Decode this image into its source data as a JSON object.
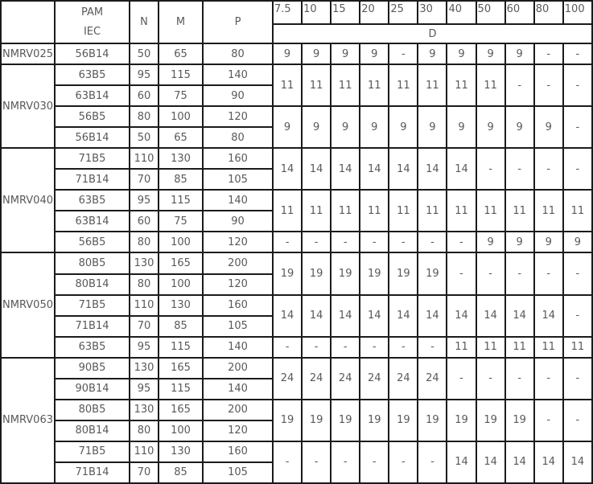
{
  "table": {
    "header": {
      "model_label": "",
      "pam_line1": "PAM",
      "pam_line2": "IEC",
      "n_label": "N",
      "m_label": "M",
      "p_label": "P",
      "ratios": [
        "7.5",
        "10",
        "15",
        "20",
        "25",
        "30",
        "40",
        "50",
        "60",
        "80",
        "100"
      ],
      "d_label": "D"
    },
    "groups": [
      {
        "model": "NMRV025",
        "rows": [
          {
            "iec": "56B14",
            "n": "50",
            "m": "65",
            "p": "80"
          }
        ],
        "d_spans": [
          {
            "rows": 1,
            "values": [
              "9",
              "9",
              "9",
              "9",
              "-",
              "9",
              "9",
              "9",
              "9",
              "-",
              "-"
            ]
          }
        ]
      },
      {
        "model": "NMRV030",
        "rows": [
          {
            "iec": "63B5",
            "n": "95",
            "m": "115",
            "p": "140"
          },
          {
            "iec": "63B14",
            "n": "60",
            "m": "75",
            "p": "90"
          },
          {
            "iec": "56B5",
            "n": "80",
            "m": "100",
            "p": "120"
          },
          {
            "iec": "56B14",
            "n": "50",
            "m": "65",
            "p": "80"
          }
        ],
        "d_spans": [
          {
            "rows": 2,
            "values": [
              "11",
              "11",
              "11",
              "11",
              "11",
              "11",
              "11",
              "11",
              "-",
              "-",
              "-"
            ]
          },
          {
            "rows": 2,
            "values": [
              "9",
              "9",
              "9",
              "9",
              "9",
              "9",
              "9",
              "9",
              "9",
              "9",
              "-"
            ]
          }
        ]
      },
      {
        "model": "NMRV040",
        "rows": [
          {
            "iec": "71B5",
            "n": "110",
            "m": "130",
            "p": "160"
          },
          {
            "iec": "71B14",
            "n": "70",
            "m": "85",
            "p": "105"
          },
          {
            "iec": "63B5",
            "n": "95",
            "m": "115",
            "p": "140"
          },
          {
            "iec": "63B14",
            "n": "60",
            "m": "75",
            "p": "90"
          },
          {
            "iec": "56B5",
            "n": "80",
            "m": "100",
            "p": "120"
          }
        ],
        "d_spans": [
          {
            "rows": 2,
            "values": [
              "14",
              "14",
              "14",
              "14",
              "14",
              "14",
              "14",
              "-",
              "-",
              "-",
              "-"
            ]
          },
          {
            "rows": 2,
            "values": [
              "11",
              "11",
              "11",
              "11",
              "11",
              "11",
              "11",
              "11",
              "11",
              "11",
              "11"
            ]
          },
          {
            "rows": 1,
            "values": [
              "-",
              "-",
              "-",
              "-",
              "-",
              "-",
              "-",
              "9",
              "9",
              "9",
              "9"
            ]
          }
        ]
      },
      {
        "model": "NMRV050",
        "rows": [
          {
            "iec": "80B5",
            "n": "130",
            "m": "165",
            "p": "200"
          },
          {
            "iec": "80B14",
            "n": "80",
            "m": "100",
            "p": "120"
          },
          {
            "iec": "71B5",
            "n": "110",
            "m": "130",
            "p": "160"
          },
          {
            "iec": "71B14",
            "n": "70",
            "m": "85",
            "p": "105"
          },
          {
            "iec": "63B5",
            "n": "95",
            "m": "115",
            "p": "140"
          }
        ],
        "d_spans": [
          {
            "rows": 2,
            "values": [
              "19",
              "19",
              "19",
              "19",
              "19",
              "19",
              "-",
              "-",
              "-",
              "-",
              "-"
            ]
          },
          {
            "rows": 2,
            "values": [
              "14",
              "14",
              "14",
              "14",
              "14",
              "14",
              "14",
              "14",
              "14",
              "14",
              "-"
            ]
          },
          {
            "rows": 1,
            "values": [
              "-",
              "-",
              "-",
              "-",
              "-",
              "-",
              "11",
              "11",
              "11",
              "11",
              "11"
            ]
          }
        ]
      },
      {
        "model": "NMRV063",
        "rows": [
          {
            "iec": "90B5",
            "n": "130",
            "m": "165",
            "p": "200"
          },
          {
            "iec": "90B14",
            "n": "95",
            "m": "115",
            "p": "140"
          },
          {
            "iec": "80B5",
            "n": "130",
            "m": "165",
            "p": "200"
          },
          {
            "iec": "80B14",
            "n": "80",
            "m": "100",
            "p": "120"
          },
          {
            "iec": "71B5",
            "n": "110",
            "m": "130",
            "p": "160"
          },
          {
            "iec": "71B14",
            "n": "70",
            "m": "85",
            "p": "105"
          }
        ],
        "d_spans": [
          {
            "rows": 2,
            "values": [
              "24",
              "24",
              "24",
              "24",
              "24",
              "24",
              "-",
              "-",
              "-",
              "-",
              "-"
            ]
          },
          {
            "rows": 2,
            "values": [
              "19",
              "19",
              "19",
              "19",
              "19",
              "19",
              "19",
              "19",
              "19",
              "-",
              "-"
            ]
          },
          {
            "rows": 2,
            "values": [
              "-",
              "-",
              "-",
              "-",
              "-",
              "-",
              "14",
              "14",
              "14",
              "14",
              "14"
            ]
          }
        ]
      }
    ]
  }
}
